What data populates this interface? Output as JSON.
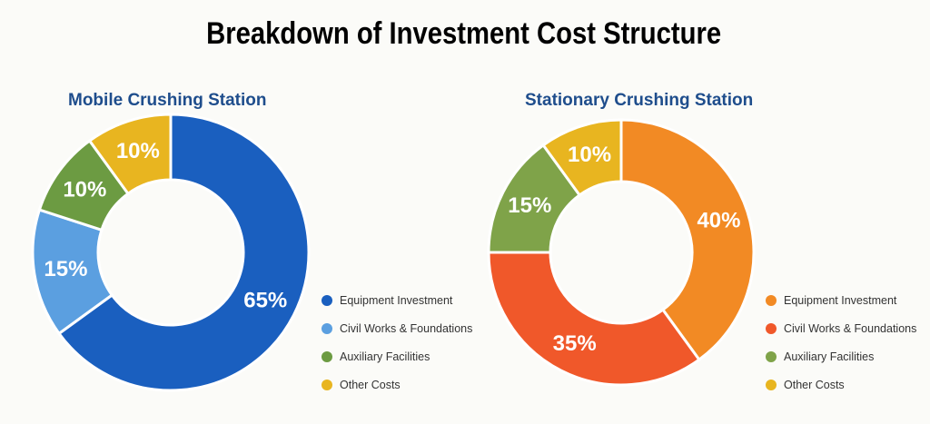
{
  "title": "Breakdown of Investment Cost Structure",
  "chart_data": [
    {
      "type": "pie",
      "donut": true,
      "title": "Mobile Crushing Station",
      "categories": [
        "Equipment Investment",
        "Civil Works & Foundations",
        "Auxiliary Facilities",
        "Other Costs"
      ],
      "values": [
        65,
        15,
        10,
        10
      ],
      "labels": [
        "65%",
        "15%",
        "10%",
        "10%"
      ],
      "colors": [
        "#1a5fbf",
        "#5b9fe0",
        "#6c9b42",
        "#e8b520"
      ],
      "legend_position": "right"
    },
    {
      "type": "pie",
      "donut": true,
      "title": "Stationary Crushing Station",
      "categories": [
        "Equipment Investment",
        "Civil Works & Foundations",
        "Auxiliary Facilities",
        "Other Costs"
      ],
      "values": [
        40,
        35,
        15,
        10
      ],
      "labels": [
        "40%",
        "35%",
        "15%",
        "10%"
      ],
      "colors": [
        "#f28a24",
        "#f0582a",
        "#7fa349",
        "#e8b520"
      ],
      "legend_position": "right"
    }
  ]
}
